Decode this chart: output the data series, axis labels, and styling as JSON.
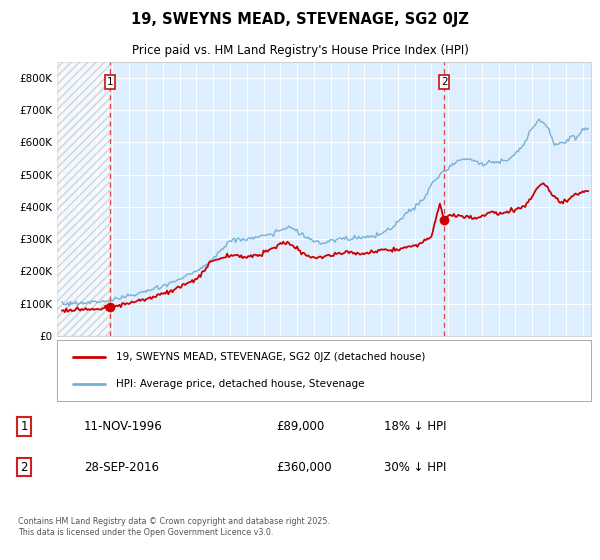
{
  "title": "19, SWEYNS MEAD, STEVENAGE, SG2 0JZ",
  "subtitle": "Price paid vs. HM Land Registry's House Price Index (HPI)",
  "legend_line1": "19, SWEYNS MEAD, STEVENAGE, SG2 0JZ (detached house)",
  "legend_line2": "HPI: Average price, detached house, Stevenage",
  "annotation1_date": "11-NOV-1996",
  "annotation1_price": "£89,000",
  "annotation1_hpi": "18% ↓ HPI",
  "annotation2_date": "28-SEP-2016",
  "annotation2_price": "£360,000",
  "annotation2_hpi": "30% ↓ HPI",
  "footnote": "Contains HM Land Registry data © Crown copyright and database right 2025.\nThis data is licensed under the Open Government Licence v3.0.",
  "red_line_color": "#cc0000",
  "blue_line_color": "#7ab0d4",
  "plot_bg_color": "#ddeeff",
  "vline_color": "#dd4444",
  "marker1_x": 1996.87,
  "marker1_y": 89000,
  "marker2_x": 2016.75,
  "marker2_y": 360000,
  "vline1_x": 1996.87,
  "vline2_x": 2016.75,
  "ylim_max": 850000,
  "yticks": [
    0,
    100000,
    200000,
    300000,
    400000,
    500000,
    600000,
    700000,
    800000
  ],
  "ytick_labels": [
    "£0",
    "£100K",
    "£200K",
    "£300K",
    "£400K",
    "£500K",
    "£600K",
    "£700K",
    "£800K"
  ],
  "xmin": 1993.7,
  "xmax": 2025.5,
  "hpi_keypoints": [
    [
      1994.0,
      100000
    ],
    [
      1995.0,
      102000
    ],
    [
      1996.0,
      105000
    ],
    [
      1997.0,
      112000
    ],
    [
      1998.5,
      130000
    ],
    [
      1999.5,
      145000
    ],
    [
      2001.0,
      175000
    ],
    [
      2002.5,
      215000
    ],
    [
      2004.0,
      295000
    ],
    [
      2005.0,
      300000
    ],
    [
      2006.5,
      315000
    ],
    [
      2007.5,
      340000
    ],
    [
      2008.5,
      305000
    ],
    [
      2009.5,
      285000
    ],
    [
      2010.5,
      300000
    ],
    [
      2011.5,
      305000
    ],
    [
      2012.5,
      305000
    ],
    [
      2013.5,
      330000
    ],
    [
      2014.5,
      380000
    ],
    [
      2015.5,
      420000
    ],
    [
      2016.0,
      470000
    ],
    [
      2016.75,
      510000
    ],
    [
      2017.5,
      540000
    ],
    [
      2018.0,
      550000
    ],
    [
      2018.5,
      545000
    ],
    [
      2019.0,
      530000
    ],
    [
      2019.5,
      540000
    ],
    [
      2020.0,
      535000
    ],
    [
      2020.5,
      545000
    ],
    [
      2021.0,
      565000
    ],
    [
      2021.5,
      590000
    ],
    [
      2022.0,
      650000
    ],
    [
      2022.3,
      670000
    ],
    [
      2022.7,
      660000
    ],
    [
      2023.0,
      640000
    ],
    [
      2023.3,
      590000
    ],
    [
      2023.7,
      600000
    ],
    [
      2024.0,
      600000
    ],
    [
      2024.3,
      620000
    ],
    [
      2024.7,
      615000
    ],
    [
      2025.0,
      640000
    ],
    [
      2025.4,
      635000
    ]
  ],
  "red_keypoints": [
    [
      1994.0,
      80000
    ],
    [
      1995.0,
      82000
    ],
    [
      1996.0,
      84000
    ],
    [
      1996.87,
      89000
    ],
    [
      1997.5,
      95000
    ],
    [
      1999.0,
      115000
    ],
    [
      2000.5,
      140000
    ],
    [
      2002.0,
      175000
    ],
    [
      2003.0,
      235000
    ],
    [
      2004.0,
      250000
    ],
    [
      2005.0,
      245000
    ],
    [
      2006.0,
      255000
    ],
    [
      2007.0,
      285000
    ],
    [
      2007.5,
      290000
    ],
    [
      2008.0,
      265000
    ],
    [
      2009.0,
      240000
    ],
    [
      2010.0,
      250000
    ],
    [
      2011.0,
      260000
    ],
    [
      2012.0,
      255000
    ],
    [
      2013.0,
      265000
    ],
    [
      2014.0,
      270000
    ],
    [
      2015.0,
      280000
    ],
    [
      2015.5,
      290000
    ],
    [
      2016.0,
      310000
    ],
    [
      2016.5,
      415000
    ],
    [
      2016.75,
      360000
    ],
    [
      2017.0,
      370000
    ],
    [
      2017.5,
      375000
    ],
    [
      2018.0,
      370000
    ],
    [
      2018.5,
      365000
    ],
    [
      2019.0,
      370000
    ],
    [
      2019.5,
      385000
    ],
    [
      2020.0,
      380000
    ],
    [
      2020.5,
      385000
    ],
    [
      2021.0,
      390000
    ],
    [
      2021.5,
      400000
    ],
    [
      2022.0,
      430000
    ],
    [
      2022.3,
      460000
    ],
    [
      2022.6,
      470000
    ],
    [
      2022.8,
      465000
    ],
    [
      2023.0,
      450000
    ],
    [
      2023.3,
      430000
    ],
    [
      2023.7,
      415000
    ],
    [
      2024.0,
      415000
    ],
    [
      2024.3,
      430000
    ],
    [
      2024.7,
      440000
    ],
    [
      2025.0,
      445000
    ],
    [
      2025.4,
      450000
    ]
  ]
}
